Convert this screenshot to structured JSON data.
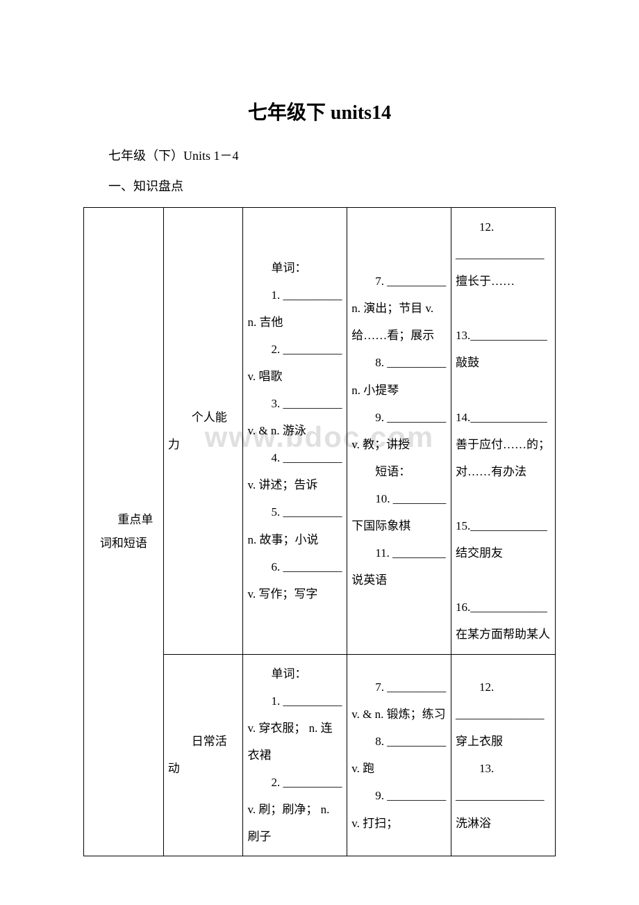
{
  "title": "七年级下 units14",
  "subtitle": "七年级（下）Units 1－4",
  "section_heading": "一、知识盘点",
  "watermark": "www.bdoc.com",
  "table": {
    "col1_header": "重点单词和短语",
    "rows": [
      {
        "category": "个人能力",
        "col3": "单词：\n1. __________ n. 吉他\n2. __________ v. 唱歌\n3. __________ v. & n. 游泳\n4. __________ v. 讲述；告诉\n5. __________ n. 故事；小说\n6. __________ v. 写作；写字",
        "col4": "7. __________ n. 演出；节目 v. 给……看；展示\n8. __________ n. 小提琴\n9. __________ v. 教；讲授\n短语：\n10. _________ 下国际象棋\n11. _________ 说英语",
        "col5": "12. _______________ 擅长于……\n13._____________ 敲鼓\n14._____________ 善于应付……的；对……有办法\n15._____________ 结交朋友\n16._____________ 在某方面帮助某人"
      },
      {
        "category": "日常活动",
        "col3": "单词：\n1. __________ v. 穿衣服； n. 连衣裙\n2. __________ v. 刷；刷净； n. 刷子",
        "col4": "7. __________ v. & n. 锻炼；练习\n8. __________ v. 跑\n9. __________ v. 打扫；",
        "col5": "12. _______________ 穿上衣服\n13. _______________ 洗淋浴"
      }
    ]
  }
}
